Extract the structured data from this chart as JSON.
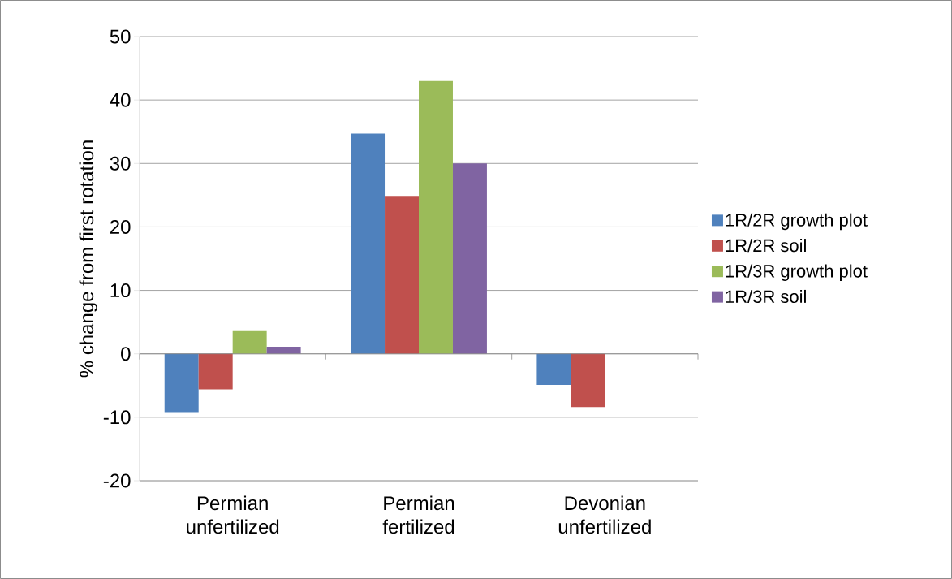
{
  "chart_data": {
    "type": "bar",
    "ylabel": "% change from first rotation",
    "categories": [
      "Permian unfertilized",
      "Permian fertilized",
      "Devonian unfertilized"
    ],
    "series": [
      {
        "name": "1R/2R growth plot",
        "color": "#4f81bd",
        "values": [
          -9.2,
          34.7,
          -4.9
        ]
      },
      {
        "name": "1R/2R soil",
        "color": "#c0504d",
        "values": [
          -5.6,
          24.9,
          -8.4
        ]
      },
      {
        "name": "1R/3R growth plot",
        "color": "#9bbb59",
        "values": [
          3.7,
          43.0,
          null
        ]
      },
      {
        "name": "1R/3R soil",
        "color": "#8064a2",
        "values": [
          1.1,
          30.0,
          null
        ]
      }
    ],
    "ylim": [
      -20,
      50
    ],
    "yticks": [
      -20,
      -10,
      0,
      10,
      20,
      30,
      40,
      50
    ],
    "grid": "y",
    "legend": "right"
  }
}
